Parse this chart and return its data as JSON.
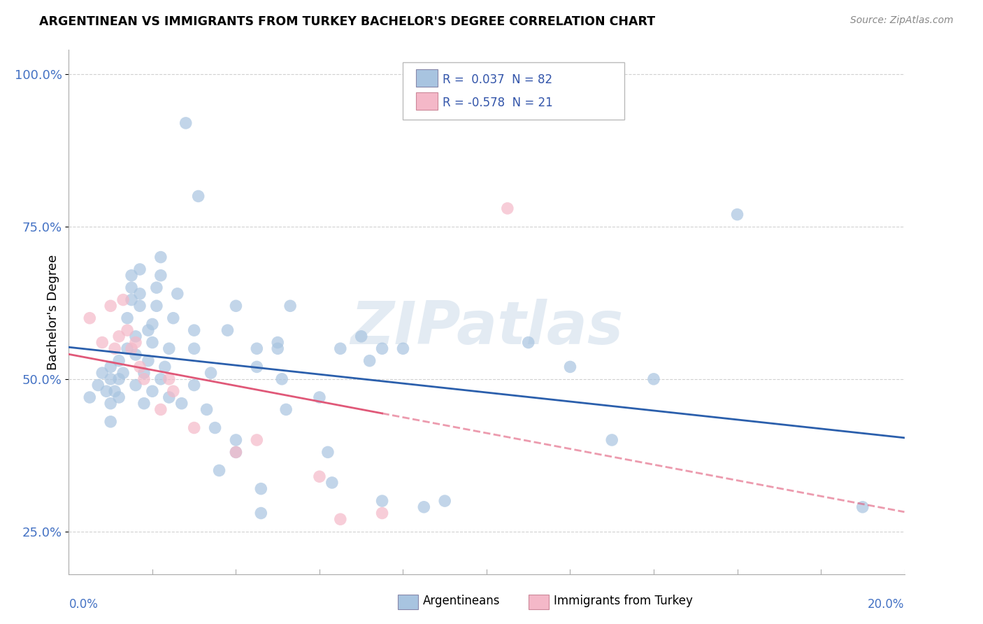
{
  "title": "ARGENTINEAN VS IMMIGRANTS FROM TURKEY BACHELOR'S DEGREE CORRELATION CHART",
  "source": "Source: ZipAtlas.com",
  "ylabel_label": "Bachelor's Degree",
  "blue_color": "#a8c4e0",
  "pink_color": "#f4b8c8",
  "blue_line_color": "#2b5fac",
  "pink_line_color": "#e05878",
  "watermark": "ZIPatlas",
  "blue_dots": [
    [
      0.005,
      0.47
    ],
    [
      0.007,
      0.49
    ],
    [
      0.008,
      0.51
    ],
    [
      0.009,
      0.48
    ],
    [
      0.01,
      0.5
    ],
    [
      0.01,
      0.52
    ],
    [
      0.01,
      0.46
    ],
    [
      0.01,
      0.43
    ],
    [
      0.011,
      0.48
    ],
    [
      0.012,
      0.5
    ],
    [
      0.012,
      0.53
    ],
    [
      0.012,
      0.47
    ],
    [
      0.013,
      0.51
    ],
    [
      0.014,
      0.55
    ],
    [
      0.014,
      0.6
    ],
    [
      0.015,
      0.63
    ],
    [
      0.015,
      0.65
    ],
    [
      0.015,
      0.67
    ],
    [
      0.016,
      0.49
    ],
    [
      0.016,
      0.54
    ],
    [
      0.016,
      0.57
    ],
    [
      0.017,
      0.62
    ],
    [
      0.017,
      0.64
    ],
    [
      0.017,
      0.68
    ],
    [
      0.018,
      0.46
    ],
    [
      0.018,
      0.51
    ],
    [
      0.019,
      0.53
    ],
    [
      0.019,
      0.58
    ],
    [
      0.02,
      0.48
    ],
    [
      0.02,
      0.56
    ],
    [
      0.02,
      0.59
    ],
    [
      0.021,
      0.62
    ],
    [
      0.021,
      0.65
    ],
    [
      0.022,
      0.5
    ],
    [
      0.022,
      0.67
    ],
    [
      0.022,
      0.7
    ],
    [
      0.023,
      0.52
    ],
    [
      0.024,
      0.47
    ],
    [
      0.024,
      0.55
    ],
    [
      0.025,
      0.6
    ],
    [
      0.026,
      0.64
    ],
    [
      0.027,
      0.46
    ],
    [
      0.028,
      0.92
    ],
    [
      0.03,
      0.55
    ],
    [
      0.03,
      0.58
    ],
    [
      0.03,
      0.49
    ],
    [
      0.031,
      0.8
    ],
    [
      0.033,
      0.45
    ],
    [
      0.034,
      0.51
    ],
    [
      0.035,
      0.42
    ],
    [
      0.036,
      0.35
    ],
    [
      0.038,
      0.58
    ],
    [
      0.04,
      0.62
    ],
    [
      0.04,
      0.4
    ],
    [
      0.04,
      0.38
    ],
    [
      0.045,
      0.55
    ],
    [
      0.045,
      0.52
    ],
    [
      0.046,
      0.32
    ],
    [
      0.046,
      0.28
    ],
    [
      0.05,
      0.56
    ],
    [
      0.05,
      0.55
    ],
    [
      0.051,
      0.5
    ],
    [
      0.052,
      0.45
    ],
    [
      0.053,
      0.62
    ],
    [
      0.06,
      0.47
    ],
    [
      0.062,
      0.38
    ],
    [
      0.063,
      0.33
    ],
    [
      0.065,
      0.55
    ],
    [
      0.07,
      0.57
    ],
    [
      0.072,
      0.53
    ],
    [
      0.075,
      0.55
    ],
    [
      0.075,
      0.3
    ],
    [
      0.08,
      0.55
    ],
    [
      0.085,
      0.29
    ],
    [
      0.09,
      0.3
    ],
    [
      0.11,
      0.56
    ],
    [
      0.12,
      0.52
    ],
    [
      0.13,
      0.4
    ],
    [
      0.14,
      0.5
    ],
    [
      0.16,
      0.77
    ],
    [
      0.19,
      0.29
    ]
  ],
  "pink_dots": [
    [
      0.005,
      0.6
    ],
    [
      0.008,
      0.56
    ],
    [
      0.01,
      0.62
    ],
    [
      0.011,
      0.55
    ],
    [
      0.012,
      0.57
    ],
    [
      0.013,
      0.63
    ],
    [
      0.014,
      0.58
    ],
    [
      0.015,
      0.55
    ],
    [
      0.016,
      0.56
    ],
    [
      0.017,
      0.52
    ],
    [
      0.018,
      0.5
    ],
    [
      0.022,
      0.45
    ],
    [
      0.024,
      0.5
    ],
    [
      0.025,
      0.48
    ],
    [
      0.03,
      0.42
    ],
    [
      0.04,
      0.38
    ],
    [
      0.045,
      0.4
    ],
    [
      0.06,
      0.34
    ],
    [
      0.065,
      0.27
    ],
    [
      0.075,
      0.28
    ],
    [
      0.105,
      0.78
    ]
  ],
  "xmin": 0.0,
  "xmax": 0.2,
  "ymin": 0.18,
  "ymax": 1.04,
  "ytick_positions": [
    0.25,
    0.5,
    0.75,
    1.0
  ],
  "ytick_labels": [
    "25.0%",
    "50.0%",
    "75.0%",
    "100.0%"
  ]
}
